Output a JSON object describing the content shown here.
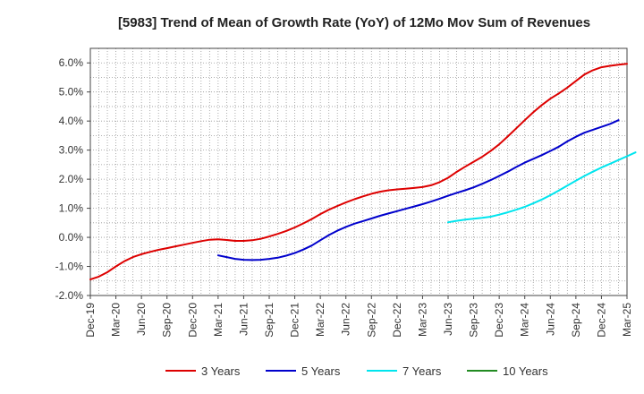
{
  "chart_data": {
    "type": "line",
    "title": "[5983]  Trend of Mean of Growth Rate (YoY) of 12Mo Mov Sum of Revenues",
    "xlabel": "",
    "ylabel": "",
    "ylim": [
      -2.0,
      6.5
    ],
    "y_ticks": [
      -2.0,
      -1.0,
      0.0,
      1.0,
      2.0,
      3.0,
      4.0,
      5.0,
      6.0
    ],
    "y_tick_labels": [
      "-2.0%",
      "-1.0%",
      "0.0%",
      "1.0%",
      "2.0%",
      "3.0%",
      "4.0%",
      "5.0%",
      "6.0%"
    ],
    "x_tick_labels": [
      "Dec-19",
      "Mar-20",
      "Jun-20",
      "Sep-20",
      "Dec-20",
      "Mar-21",
      "Jun-21",
      "Sep-21",
      "Dec-21",
      "Mar-22",
      "Jun-22",
      "Sep-22",
      "Dec-22",
      "Mar-23",
      "Jun-23",
      "Sep-23",
      "Dec-23",
      "Mar-24",
      "Jun-24",
      "Sep-24",
      "Dec-24",
      "Mar-25"
    ],
    "x_start": "Dec-19",
    "x_months_span": 63,
    "grid": true,
    "legend_position": "bottom",
    "series": [
      {
        "name": "3 Years",
        "color": "#dd0000",
        "start_month": 0,
        "values": [
          -1.45,
          -1.35,
          -1.2,
          -1.0,
          -0.82,
          -0.68,
          -0.58,
          -0.5,
          -0.43,
          -0.37,
          -0.31,
          -0.25,
          -0.19,
          -0.13,
          -0.08,
          -0.07,
          -0.09,
          -0.12,
          -0.12,
          -0.1,
          -0.05,
          0.03,
          0.12,
          0.22,
          0.34,
          0.48,
          0.63,
          0.8,
          0.95,
          1.08,
          1.2,
          1.31,
          1.41,
          1.5,
          1.57,
          1.62,
          1.65,
          1.67,
          1.7,
          1.73,
          1.79,
          1.9,
          2.05,
          2.25,
          2.43,
          2.6,
          2.77,
          2.97,
          3.2,
          3.47,
          3.75,
          4.03,
          4.3,
          4.55,
          4.77,
          4.95,
          5.15,
          5.38,
          5.6,
          5.75,
          5.85,
          5.9,
          5.94,
          5.97
        ]
      },
      {
        "name": "5 Years",
        "color": "#0000cc",
        "start_month": 15,
        "values": [
          -0.62,
          -0.68,
          -0.74,
          -0.77,
          -0.78,
          -0.77,
          -0.74,
          -0.7,
          -0.63,
          -0.54,
          -0.42,
          -0.28,
          -0.1,
          0.08,
          0.23,
          0.36,
          0.47,
          0.56,
          0.65,
          0.74,
          0.82,
          0.9,
          0.98,
          1.06,
          1.14,
          1.23,
          1.33,
          1.43,
          1.53,
          1.62,
          1.72,
          1.84,
          1.97,
          2.11,
          2.26,
          2.42,
          2.57,
          2.7,
          2.83,
          2.97,
          3.12,
          3.3,
          3.46,
          3.6,
          3.7,
          3.8,
          3.9,
          4.03
        ]
      },
      {
        "name": "7 Years",
        "color": "#00e5ee",
        "start_month": 42,
        "values": [
          0.52,
          0.57,
          0.61,
          0.64,
          0.67,
          0.71,
          0.78,
          0.86,
          0.95,
          1.05,
          1.17,
          1.3,
          1.45,
          1.61,
          1.78,
          1.95,
          2.11,
          2.26,
          2.4,
          2.53,
          2.66,
          2.79,
          2.92
        ]
      },
      {
        "name": "10 Years",
        "color": "#228b22",
        "start_month": 0,
        "values": []
      }
    ]
  }
}
